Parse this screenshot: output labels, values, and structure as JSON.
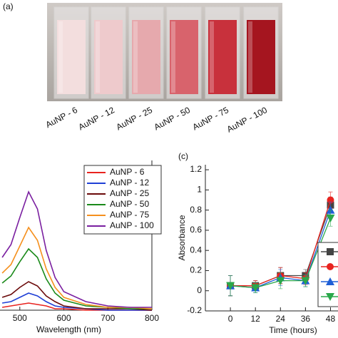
{
  "panels": {
    "a": "(a)",
    "c": "(c)"
  },
  "photo": {
    "labels": [
      "AuNP - 6",
      "AuNP - 12",
      "AuNP - 25",
      "AuNP - 50",
      "AuNP - 75",
      "AuNP - 100"
    ]
  },
  "chart_data": [
    {
      "type": "line",
      "xlabel": "Wavelength (nm)",
      "x": [
        460,
        480,
        500,
        520,
        540,
        560,
        580,
        600,
        650,
        700,
        750,
        800
      ],
      "xlim": [
        455,
        800
      ],
      "xticks": [
        500,
        600,
        700,
        800
      ],
      "ylim": [
        0,
        1
      ],
      "series": [
        {
          "name": "AuNP - 6",
          "color": "#e8231f",
          "values": [
            0.02,
            0.03,
            0.04,
            0.05,
            0.04,
            0.03,
            0.01,
            0.01,
            0,
            0,
            0,
            0
          ]
        },
        {
          "name": "AuNP - 12",
          "color": "#1f3fd6",
          "values": [
            0.05,
            0.06,
            0.09,
            0.12,
            0.1,
            0.06,
            0.03,
            0.02,
            0.01,
            0,
            0,
            0
          ]
        },
        {
          "name": "AuNP - 25",
          "color": "#6b0a0a",
          "values": [
            0.09,
            0.11,
            0.16,
            0.2,
            0.17,
            0.1,
            0.06,
            0.03,
            0.01,
            0.01,
            0.01,
            0
          ]
        },
        {
          "name": "AuNP - 50",
          "color": "#1a8a1a",
          "values": [
            0.19,
            0.24,
            0.34,
            0.43,
            0.37,
            0.22,
            0.12,
            0.07,
            0.03,
            0.02,
            0.01,
            0.01
          ]
        },
        {
          "name": "AuNP - 75",
          "color": "#f5901e",
          "values": [
            0.26,
            0.32,
            0.45,
            0.58,
            0.49,
            0.29,
            0.16,
            0.09,
            0.04,
            0.02,
            0.02,
            0.01
          ]
        },
        {
          "name": "AuNP - 100",
          "color": "#7a1fa0",
          "values": [
            0.37,
            0.46,
            0.65,
            0.83,
            0.71,
            0.42,
            0.23,
            0.13,
            0.06,
            0.03,
            0.02,
            0.02
          ]
        }
      ]
    },
    {
      "type": "errorline",
      "xlabel": "Time (hours)",
      "ylabel": "Absorbance",
      "x": [
        0,
        12,
        24,
        36,
        48
      ],
      "xlim": [
        -12,
        51.6
      ],
      "xticks": [
        0,
        12,
        24,
        36,
        48
      ],
      "ylim": [
        -0.2,
        1.25
      ],
      "yticks": [
        1.2,
        1,
        0.8,
        0.6,
        0.4,
        0.2,
        0,
        -0.2
      ],
      "series": [
        {
          "color": "#444444",
          "marker": "square",
          "values": [
            0.05,
            0.05,
            0.15,
            0.15,
            0.85
          ],
          "errors": [
            0.1,
            0.05,
            0.08,
            0.06,
            0.08
          ]
        },
        {
          "color": "#e8231f",
          "marker": "circle",
          "values": [
            0.05,
            0.05,
            0.15,
            0.12,
            0.9
          ],
          "errors": [
            0.1,
            0.05,
            0.08,
            0.06,
            0.08
          ]
        },
        {
          "color": "#1f5fd6",
          "marker": "triangle",
          "values": [
            0.05,
            0.03,
            0.13,
            0.1,
            0.8
          ],
          "errors": [
            0.1,
            0.05,
            0.08,
            0.06,
            0.08
          ]
        },
        {
          "color": "#2aa84a",
          "marker": "triangle-down",
          "values": [
            0.05,
            0.03,
            0.1,
            0.1,
            0.72
          ],
          "errors": [
            0.1,
            0.05,
            0.08,
            0.06,
            0.08
          ]
        }
      ]
    }
  ]
}
